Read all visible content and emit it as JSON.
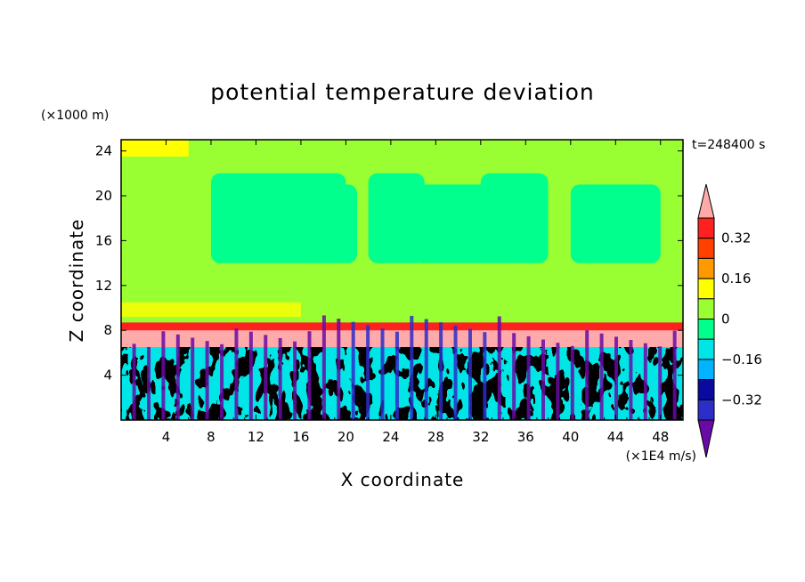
{
  "chart_data": {
    "type": "heatmap",
    "title": "potential temperature deviation",
    "xlabel": "X coordinate",
    "ylabel": "Z coordinate",
    "x_unit": "(×1E4 m/s)",
    "y_unit": "(×1000 m)",
    "time_label": "t=248400 s",
    "xlim": [
      0,
      50
    ],
    "ylim": [
      0,
      25
    ],
    "x_ticks": [
      4,
      8,
      12,
      16,
      20,
      24,
      28,
      32,
      36,
      40,
      44,
      48
    ],
    "y_ticks": [
      4,
      8,
      12,
      16,
      20,
      24
    ],
    "colorbar": {
      "labels": [
        "0.32",
        "0.16",
        "0",
        "-0.16",
        "-0.32"
      ],
      "label_values": [
        0.32,
        0.16,
        0,
        -0.16,
        -0.32
      ],
      "levels": [
        -0.4,
        -0.32,
        -0.24,
        -0.16,
        -0.08,
        0,
        0.08,
        0.16,
        0.24,
        0.32,
        0.4
      ],
      "colors": [
        "#6a0aa6",
        "#2d2dc8",
        "#0a0aa0",
        "#00b4ff",
        "#00e6e6",
        "#00ff8c",
        "#99ff33",
        "#ffff00",
        "#ff9900",
        "#ff4000",
        "#ff2020",
        "#ffaaaa"
      ],
      "extend": "both"
    },
    "field_description": {
      "upper_layer": {
        "z_range": [
          9,
          25
        ],
        "dominant_values": [
          0.04,
          -0.04
        ]
      },
      "warm_band": {
        "z": 8.2,
        "value": 0.4
      },
      "lower_layer": {
        "z_range": [
          0,
          8
        ],
        "value_range": [
          -0.4,
          0.4
        ]
      }
    }
  }
}
